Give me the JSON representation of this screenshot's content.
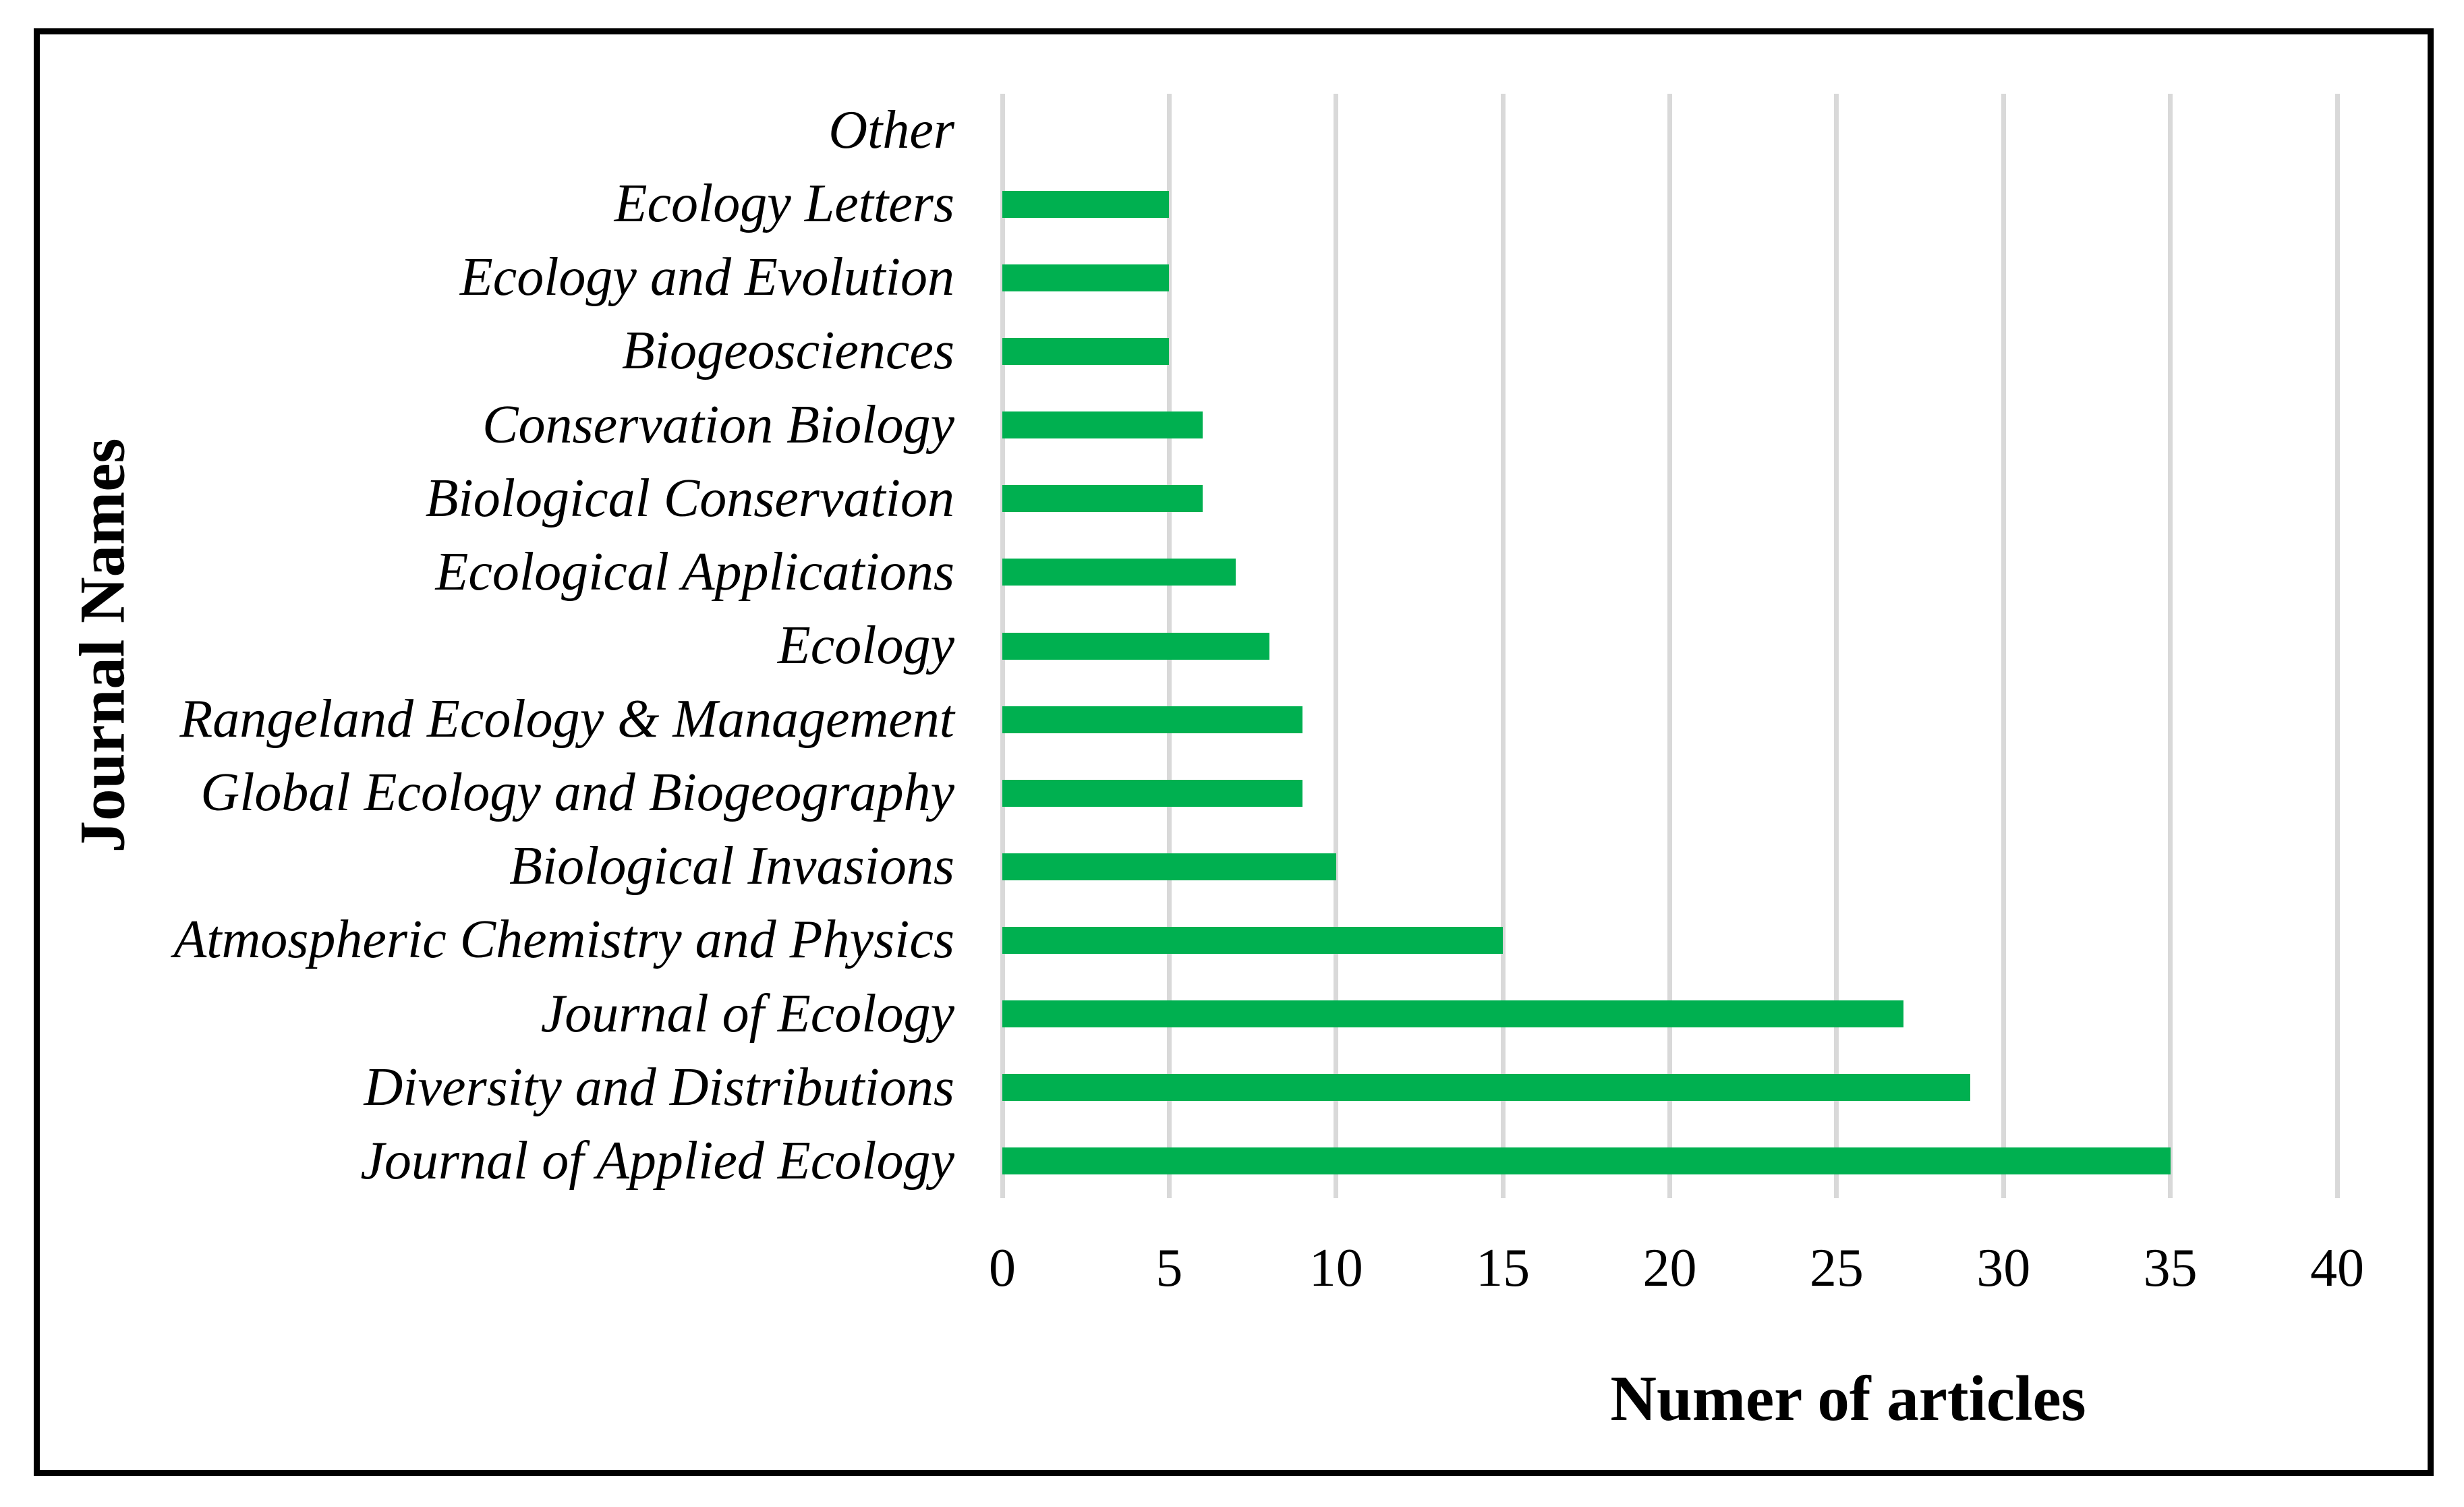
{
  "chart_data": {
    "type": "bar",
    "orientation": "horizontal",
    "title": "",
    "xlabel": "Numer of articles",
    "ylabel": "Journal Names",
    "categories": [
      "Other",
      "Ecology Letters",
      "Ecology and Evolution",
      "Biogeosciences",
      "Conservation Biology",
      "Biological Conservation",
      "Ecological Applications",
      "Ecology",
      "Rangeland Ecology & Management",
      "Global Ecology and Biogeography",
      "Biological Invasions",
      "Atmospheric Chemistry and Physics",
      "Journal of Ecology",
      "Diversity and Distributions",
      "Journal of Applied Ecology"
    ],
    "values": [
      0,
      5,
      5,
      5,
      6,
      6,
      7,
      8,
      9,
      9,
      10,
      15,
      27,
      29,
      35
    ],
    "xlim": [
      0,
      40
    ],
    "xtick_step": 5,
    "xtick_labels": [
      "0",
      "5",
      "10",
      "15",
      "20",
      "25",
      "30",
      "35",
      "40"
    ],
    "grid": "vertical",
    "legend": "none",
    "colors": {
      "bar": "#00b050",
      "gridline": "#d9d9d9",
      "text": "#000000",
      "frame_border": "#000000",
      "background": "#ffffff"
    }
  }
}
